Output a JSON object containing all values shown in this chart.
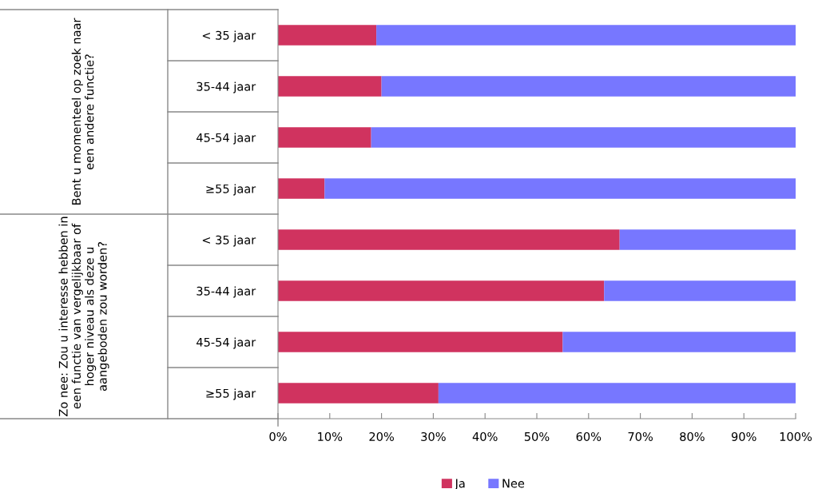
{
  "chart_data": {
    "type": "bar",
    "orientation": "horizontal",
    "stacked": true,
    "categories": [
      "< 35 jaar",
      "35-44 jaar",
      "45-54 jaar",
      "≥55 jaar",
      "< 35 jaar",
      "35-44 jaar",
      "45-54 jaar",
      "≥55 jaar"
    ],
    "series": [
      {
        "name": "Ja",
        "color": "#d0335f",
        "values": [
          19,
          20,
          18,
          9,
          66,
          63,
          55,
          31
        ]
      },
      {
        "name": "Nee",
        "color": "#7777ff",
        "values": [
          81,
          80,
          82,
          91,
          34,
          37,
          45,
          69
        ]
      }
    ],
    "annotations": [
      "Bent u momenteel op zoek naar een andere functie?",
      "Zo nee: Zou u interesse hebben in een functie van vergelijkbaar of hoger niveau als deze u aangeboden zou worden?"
    ],
    "xlim": [
      0,
      100
    ],
    "xticks": [
      {
        "value": 0,
        "label": "0%"
      },
      {
        "value": 10,
        "label": "10%"
      },
      {
        "value": 20,
        "label": "20%"
      },
      {
        "value": 30,
        "label": "30%"
      },
      {
        "value": 40,
        "label": "40%"
      },
      {
        "value": 50,
        "label": "50%"
      },
      {
        "value": 60,
        "label": "60%"
      },
      {
        "value": 70,
        "label": "70%"
      },
      {
        "value": 80,
        "label": "80%"
      },
      {
        "value": 90,
        "label": "90%"
      },
      {
        "value": 100,
        "label": "100%"
      }
    ],
    "grid": false,
    "legend": "bottom"
  }
}
